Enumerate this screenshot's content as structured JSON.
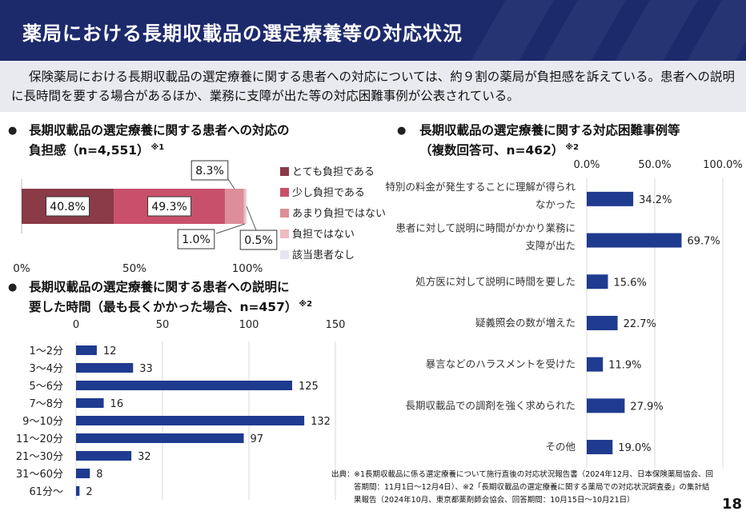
{
  "slide": {
    "title": "薬局における長期収載品の選定療養等の対応状況",
    "intro": "保険薬局における長期収載品の選定療養に関する患者への対応については、約９割の薬局が負担感を訴えている。患者への説明に長時間を要する場合があるほか、業務に支障が出た等の対応困難事例が公表されている。",
    "page_number": "18",
    "source_prefix": "出典：",
    "source_text": "※1長期収載品に係る選定療養について施行直後の対応状況報告書（2024年12月、日本保険薬局協会、回答期間：11月1日〜12月4日）、※2「長期収載品の選定療養に関する薬局での対応状況調査委」の集計結果報告（2024年10月、東京都薬剤師会協会、回答期間：10月15日〜10月21日）"
  },
  "sections": {
    "burden": {
      "bullet": "●",
      "title_line1": "長期収載品の選定療養に関する患者への対応の",
      "title_line2": "負担感（n=4,551）",
      "note": "※1"
    },
    "time": {
      "bullet": "●",
      "title_line1": "長期収載品の選定療養に関する患者への説明に",
      "title_line2": "要した時間（最も長くかかった場合、n=457）",
      "note": "※2"
    },
    "cases": {
      "bullet": "●",
      "title_line1": "長期収載品の選定療養に関する対応困難事例等",
      "title_line2": "（複数回答可、n=462）",
      "note": "※2"
    }
  },
  "chart_data": [
    {
      "type": "bar",
      "orientation": "horizontal-stacked",
      "x_ticks": [
        "0%",
        "50%",
        "100%"
      ],
      "xlim": [
        0,
        100
      ],
      "series": [
        {
          "name": "とても負担である",
          "value": 40.8,
          "label": "40.8%",
          "color": "#8b3a47"
        },
        {
          "name": "少し負担である",
          "value": 49.3,
          "label": "49.3%",
          "color": "#c9506a"
        },
        {
          "name": "あまり負担ではない",
          "value": 8.3,
          "label": "8.3%",
          "color": "#dc8f98"
        },
        {
          "name": "負担ではない",
          "value": 1.0,
          "label": "1.0%",
          "color": "#eebcc0"
        },
        {
          "name": "該当患者なし",
          "value": 0.5,
          "label": "0.5%",
          "color": "#e6e4ee"
        }
      ],
      "legend_position": "right"
    },
    {
      "type": "bar",
      "orientation": "horizontal",
      "x_ticks": [
        "0",
        "50",
        "100",
        "150"
      ],
      "xlim": [
        0,
        150
      ],
      "grid": true,
      "color": "#1f3b8f",
      "categories": [
        "1～2分",
        "3～4分",
        "5～6分",
        "7～8分",
        "9～10分",
        "11～20分",
        "21～30分",
        "31～60分",
        "61分～"
      ],
      "values": [
        12,
        33,
        125,
        16,
        132,
        97,
        32,
        8,
        2
      ],
      "labels": [
        "12",
        "33",
        "125",
        "16",
        "132",
        "97",
        "32",
        "8",
        "2"
      ]
    },
    {
      "type": "bar",
      "orientation": "horizontal",
      "x_ticks": [
        "0.0%",
        "50.0%",
        "100.0%"
      ],
      "xlim": [
        0,
        100
      ],
      "grid": true,
      "color": "#1f3b8f",
      "categories": [
        [
          "特別の料金が発生することに理解が得られ",
          "なかった"
        ],
        [
          "患者に対して説明に時間がかかり業務に",
          "支障が出た"
        ],
        [
          "処方医に対して説明に時間を要した"
        ],
        [
          "疑義照会の数が増えた"
        ],
        [
          "暴言などのハラスメントを受けた"
        ],
        [
          "長期収載品での調剤を強く求められた"
        ],
        [
          "その他"
        ]
      ],
      "values": [
        34.2,
        69.7,
        15.6,
        22.7,
        11.9,
        27.9,
        19.0
      ],
      "labels": [
        "34.2%",
        "69.7%",
        "15.6%",
        "22.7%",
        "11.9%",
        "27.9%",
        "19.0%"
      ]
    }
  ]
}
